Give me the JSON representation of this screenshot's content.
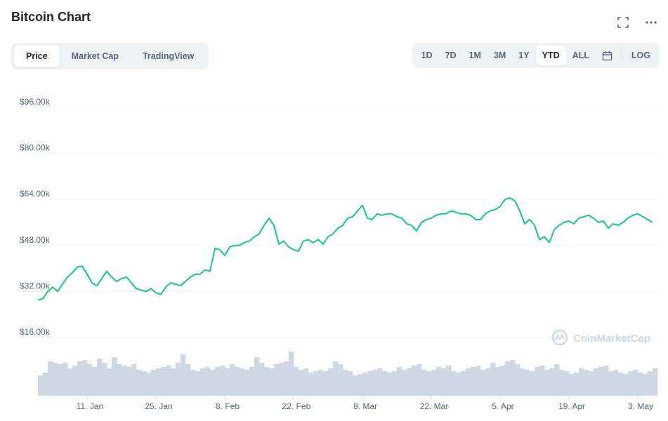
{
  "header": {
    "title": "Bitcoin Chart",
    "fullscreen_icon": "expand-icon",
    "more_icon": "more-horizontal-icon"
  },
  "view_tabs": [
    {
      "label": "Price",
      "active": true
    },
    {
      "label": "Market Cap",
      "active": false
    },
    {
      "label": "TradingView",
      "active": false
    }
  ],
  "range_tabs": [
    {
      "label": "1D",
      "active": false
    },
    {
      "label": "7D",
      "active": false
    },
    {
      "label": "1M",
      "active": false
    },
    {
      "label": "3M",
      "active": false
    },
    {
      "label": "1Y",
      "active": false
    },
    {
      "label": "YTD",
      "active": true
    },
    {
      "label": "ALL",
      "active": false
    }
  ],
  "calendar_icon": "calendar-icon",
  "log_label": "LOG",
  "watermark": "CoinMarketCap",
  "colors": {
    "line": "#16c784",
    "volume": "#cfd6e4",
    "grid": "#eff2f5",
    "text": "#58667e"
  },
  "chart_data": {
    "type": "line",
    "title": "",
    "xlabel": "",
    "ylabel": "",
    "y_tick_labels": [
      "$16.00k",
      "$32.00k",
      "$48.00k",
      "$64.00k",
      "$80.00k",
      "$96.00k"
    ],
    "y_ticks": [
      16000,
      32000,
      48000,
      64000,
      80000,
      96000
    ],
    "ylim": [
      9000,
      100000
    ],
    "x_tick_labels": [
      "11. Jan",
      "25. Jan",
      "8. Feb",
      "22. Feb",
      "8. Mar",
      "22. Mar",
      "5. Apr",
      "19. Apr",
      "3. May"
    ],
    "x_tick_days": [
      10,
      24,
      38,
      52,
      66,
      80,
      94,
      108,
      122
    ],
    "x_range_days": [
      0,
      126
    ],
    "grid": true,
    "series": [
      {
        "values_x_day": [
          0,
          1,
          2,
          3,
          4,
          5,
          6,
          7,
          8,
          9,
          10,
          11,
          12,
          13,
          14,
          15,
          16,
          17,
          18,
          19,
          20,
          21,
          22,
          23,
          24,
          25,
          26,
          27,
          28,
          29,
          30,
          31,
          32,
          33,
          34,
          35,
          36,
          37,
          38,
          39,
          40,
          41,
          42,
          43,
          44,
          45,
          46,
          47,
          48,
          49,
          50,
          51,
          52,
          53,
          54,
          55,
          56,
          57,
          58,
          59,
          60,
          61,
          62,
          63,
          64,
          65,
          66,
          67,
          68,
          69,
          70,
          71,
          72,
          73,
          74,
          75,
          76,
          77,
          78,
          79,
          80,
          81,
          82,
          83,
          84,
          85,
          86,
          87,
          88,
          89,
          90,
          91,
          92,
          93,
          94,
          95,
          96,
          97,
          98,
          99,
          100,
          101,
          102,
          103,
          104,
          105,
          106,
          107,
          108,
          109,
          110,
          111,
          112,
          113,
          114,
          115,
          116,
          117,
          118,
          119,
          120,
          121,
          122,
          123,
          124,
          125
        ],
        "values": [
          29000,
          29500,
          32000,
          33500,
          32000,
          34500,
          37000,
          38500,
          40500,
          40800,
          38000,
          35000,
          34000,
          36500,
          39000,
          37000,
          35500,
          36500,
          37000,
          35000,
          33000,
          32500,
          32000,
          33000,
          31500,
          31000,
          33500,
          35000,
          34500,
          34000,
          35500,
          37000,
          38000,
          38000,
          39500,
          39000,
          47000,
          46500,
          44500,
          47500,
          48000,
          48000,
          49000,
          49500,
          51000,
          52000,
          55000,
          57500,
          55000,
          48500,
          49500,
          47500,
          46500,
          46000,
          49500,
          50000,
          49000,
          50000,
          48500,
          51000,
          52000,
          54000,
          55000,
          57500,
          58000,
          60000,
          62000,
          57500,
          57000,
          59000,
          58500,
          59000,
          59000,
          58000,
          57500,
          55500,
          55000,
          53000,
          56000,
          57000,
          57500,
          58500,
          59000,
          59000,
          60000,
          59500,
          59000,
          59000,
          58500,
          57000,
          57000,
          59000,
          60000,
          60500,
          61500,
          64000,
          64500,
          63500,
          60000,
          55500,
          57000,
          55000,
          50000,
          51000,
          49000,
          53500,
          55000,
          56000,
          56500,
          55500,
          57500,
          58000,
          58500,
          57500,
          56000,
          56500,
          54000,
          55500,
          55000,
          56000,
          57500,
          58500,
          59000,
          58000,
          57000,
          56000
        ]
      }
    ],
    "volume_values": [
      28,
      32,
      48,
      46,
      44,
      46,
      38,
      42,
      48,
      50,
      44,
      40,
      52,
      46,
      38,
      54,
      44,
      42,
      40,
      44,
      36,
      34,
      32,
      36,
      38,
      40,
      42,
      38,
      46,
      58,
      44,
      36,
      34,
      38,
      40,
      36,
      40,
      42,
      38,
      44,
      40,
      38,
      36,
      40,
      54,
      46,
      40,
      38,
      44,
      46,
      48,
      62,
      40,
      36,
      38,
      32,
      34,
      36,
      34,
      38,
      48,
      44,
      36,
      34,
      28,
      30,
      32,
      34,
      36,
      38,
      34,
      32,
      34,
      40,
      36,
      38,
      42,
      44,
      36,
      34,
      36,
      40,
      38,
      42,
      34,
      32,
      34,
      38,
      40,
      42,
      36,
      38,
      46,
      40,
      42,
      48,
      50,
      44,
      38,
      36,
      34,
      40,
      42,
      36,
      38,
      44,
      36,
      34,
      30,
      32,
      38,
      36,
      34,
      38,
      40,
      42,
      34,
      36,
      32,
      30,
      34,
      36,
      32,
      30,
      34,
      38
    ]
  }
}
